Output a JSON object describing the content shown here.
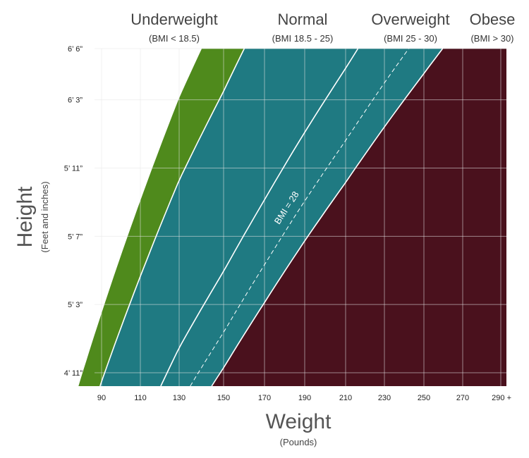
{
  "chart_data": {
    "type": "area",
    "categories": [
      {
        "name": "Underweight",
        "range": "(BMI < 18.5)",
        "color": "#4f8a1c"
      },
      {
        "name": "Normal",
        "range": "(BMI 18.5 - 25)",
        "color": "#1f7a82"
      },
      {
        "name": "Overweight",
        "range": "(BMI 25 - 30)",
        "color": "#1f7a82"
      },
      {
        "name": "Obese",
        "range": "(BMI > 30)",
        "color": "#4a111d"
      }
    ],
    "xlabel": "Weight",
    "xlabel_sub": "(Pounds)",
    "ylabel": "Height",
    "ylabel_sub": "(Feet and inches)",
    "x_ticks": [
      {
        "label": "90",
        "value": 90
      },
      {
        "label": "110",
        "value": 110
      },
      {
        "label": "130",
        "value": 130
      },
      {
        "label": "150",
        "value": 150
      },
      {
        "label": "170",
        "value": 170
      },
      {
        "label": "190",
        "value": 190
      },
      {
        "label": "210",
        "value": 210
      },
      {
        "label": "230",
        "value": 230
      },
      {
        "label": "250",
        "value": 250
      },
      {
        "label": "270",
        "value": 270
      },
      {
        "label": "290 +",
        "value": 290
      }
    ],
    "y_ticks": [
      {
        "label": "4’ 11”",
        "value": 59
      },
      {
        "label": "5’ 3”",
        "value": 63
      },
      {
        "label": "5’ 7”",
        "value": 67
      },
      {
        "label": "5’ 11”",
        "value": 71
      },
      {
        "label": "6’ 3”",
        "value": 75
      },
      {
        "label": "6’ 6”",
        "value": 78
      }
    ],
    "boundaries": [
      {
        "bmi": 18.5,
        "style": "solid"
      },
      {
        "bmi": 25,
        "style": "solid"
      },
      {
        "bmi": 28,
        "style": "dashed",
        "label": "BMI = 28"
      },
      {
        "bmi": 30,
        "style": "solid"
      }
    ],
    "colors": {
      "underweight": "#4f8a1c",
      "band": "#1f7a82",
      "obese": "#4a111d",
      "grid": "#e6e6e6",
      "boundary_line": "#ffffff"
    }
  }
}
